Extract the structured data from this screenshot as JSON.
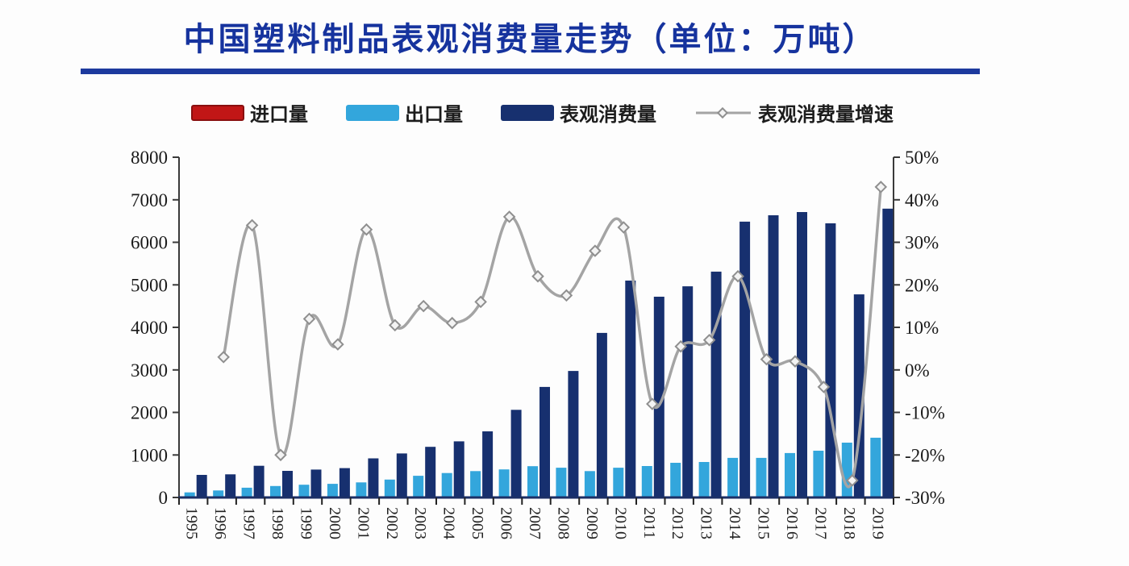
{
  "page": {
    "title": "中国塑料制品表观消费量走势（单位：万吨）"
  },
  "colors": {
    "title_blue": "#16339e",
    "rule_blue": "#1d3a9e",
    "import_red": "#c11616",
    "import_red_border": "#8a0f0f",
    "export_blue": "#33a6dc",
    "consumption_navy": "#17306f",
    "growth_line_gray": "#a4a4a4",
    "marker_fill": "#f3f3f3",
    "axis_gray": "#3a3a3a",
    "x_axis_navy": "#1b2f66",
    "tick_text": "#1a1a1a"
  },
  "legend": {
    "items": [
      {
        "label": "进口量",
        "type": "bar",
        "color_key": "import_red"
      },
      {
        "label": "出口量",
        "type": "bar",
        "color_key": "export_blue"
      },
      {
        "label": "表观消费量",
        "type": "bar",
        "color_key": "consumption_navy"
      },
      {
        "label": "表观消费量增速",
        "type": "line",
        "color_key": "growth_line_gray"
      }
    ]
  },
  "chart_data": {
    "type": "bar",
    "subtype": "grouped bars + growth line (dual axis)",
    "title": "中国塑料制品表观消费量走势",
    "unit": "万吨",
    "categories": [
      "1995",
      "1996",
      "1997",
      "1998",
      "1999",
      "2000",
      "2001",
      "2002",
      "2003",
      "2004",
      "2005",
      "2006",
      "2007",
      "2008",
      "2009",
      "2010",
      "2011",
      "2012",
      "2013",
      "2014",
      "2015",
      "2016",
      "2017",
      "2018",
      "2019"
    ],
    "series": [
      {
        "name": "进口量",
        "type": "bar",
        "axis": "left",
        "color": "#c11616",
        "values": [],
        "note": "legend entry present but import bars are not visible in the plot"
      },
      {
        "name": "出口量",
        "type": "bar",
        "axis": "left",
        "color": "#33a6dc",
        "values": [
          120,
          165,
          230,
          270,
          300,
          320,
          355,
          420,
          510,
          575,
          620,
          660,
          735,
          700,
          620,
          700,
          740,
          815,
          835,
          930,
          930,
          1045,
          1100,
          1290,
          1405
        ]
      },
      {
        "name": "表观消费量",
        "type": "bar",
        "axis": "left",
        "color": "#17306f",
        "values": [
          530,
          545,
          745,
          625,
          655,
          690,
          920,
          1035,
          1190,
          1320,
          1555,
          2060,
          2600,
          2975,
          3870,
          5100,
          4720,
          4965,
          5310,
          6485,
          6635,
          6710,
          6445,
          4775,
          6790
        ]
      },
      {
        "name": "表观消费量增速",
        "type": "line",
        "axis": "right",
        "unit": "%",
        "color": "#a4a4a4",
        "values": [
          null,
          3,
          34,
          -20,
          12,
          6,
          33,
          10.5,
          15,
          11,
          16,
          36,
          22,
          17.5,
          28,
          33.5,
          -8,
          5.5,
          7,
          22,
          2.5,
          2,
          -4,
          -26,
          43
        ]
      }
    ],
    "left_axis": {
      "min": 0,
      "max": 8000,
      "tick_step": 1000,
      "tick_labels": [
        "8000",
        "7000",
        "6000",
        "5000",
        "4000",
        "3000",
        "2000",
        "1000",
        "0"
      ]
    },
    "right_axis": {
      "min": -30,
      "max": 50,
      "tick_step": 10,
      "tick_labels": [
        "50%",
        "40%",
        "30%",
        "20%",
        "10%",
        "0%",
        "-10%",
        "-20%",
        "-30%"
      ]
    },
    "x_axis": {
      "label_rotation_deg": 90
    },
    "grid": false,
    "legend_position": "top"
  }
}
